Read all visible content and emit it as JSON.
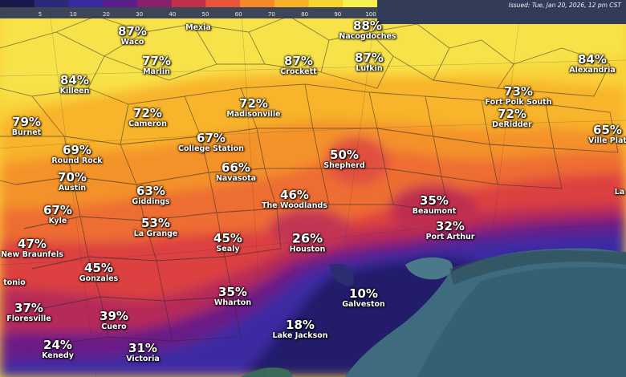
{
  "map": {
    "issued": "Issued: Tue, Jan 20, 2026, 12 pm CST",
    "legend": {
      "ticks": [
        "5",
        "10",
        "20",
        "30",
        "40",
        "50",
        "60",
        "70",
        "80",
        "90",
        "100"
      ],
      "colors": [
        "#1a1a4a",
        "#2a2a78",
        "#3a2aa0",
        "#5a1f8a",
        "#8a1f6a",
        "#c0304a",
        "#e8563a",
        "#f5862a",
        "#f8b028",
        "#f9d330",
        "#f7ef50"
      ]
    },
    "locations": [
      {
        "id": "waco",
        "pct": "87%",
        "city": "Waco"
      },
      {
        "id": "mexia",
        "pct": "",
        "city": "Mexia"
      },
      {
        "id": "nacogdoches",
        "pct": "88%",
        "city": "Nacogdoches"
      },
      {
        "id": "marlin",
        "pct": "77%",
        "city": "Marlin"
      },
      {
        "id": "crockett",
        "pct": "87%",
        "city": "Crockett"
      },
      {
        "id": "lufkin",
        "pct": "87%",
        "city": "Lufkin"
      },
      {
        "id": "alexandria",
        "pct": "84%",
        "city": "Alexandria"
      },
      {
        "id": "killeen",
        "pct": "84%",
        "city": "Killeen"
      },
      {
        "id": "cameron",
        "pct": "72%",
        "city": "Cameron"
      },
      {
        "id": "madisonville",
        "pct": "72%",
        "city": "Madisonville"
      },
      {
        "id": "fort-polk-south",
        "pct": "73%",
        "city": "Fort Polk South"
      },
      {
        "id": "deridder",
        "pct": "72%",
        "city": "DeRidder"
      },
      {
        "id": "burnet",
        "pct": "79%",
        "city": "Burnet"
      },
      {
        "id": "college-station",
        "pct": "67%",
        "city": "College Station"
      },
      {
        "id": "ville-platte",
        "pct": "65%",
        "city": "Ville Plat"
      },
      {
        "id": "round-rock",
        "pct": "69%",
        "city": "Round Rock"
      },
      {
        "id": "shepherd",
        "pct": "50%",
        "city": "Shepherd"
      },
      {
        "id": "navasota",
        "pct": "66%",
        "city": "Navasota"
      },
      {
        "id": "austin",
        "pct": "70%",
        "city": "Austin"
      },
      {
        "id": "giddings",
        "pct": "63%",
        "city": "Giddings"
      },
      {
        "id": "the-woodlands",
        "pct": "46%",
        "city": "The Woodlands"
      },
      {
        "id": "beaumont",
        "pct": "35%",
        "city": "Beaumont"
      },
      {
        "id": "kyle",
        "pct": "67%",
        "city": "Kyle"
      },
      {
        "id": "la-grange",
        "pct": "53%",
        "city": "La Grange"
      },
      {
        "id": "port-arthur",
        "pct": "32%",
        "city": "Port Arthur"
      },
      {
        "id": "new-braunfels",
        "pct": "47%",
        "city": "New Braunfels"
      },
      {
        "id": "sealy",
        "pct": "45%",
        "city": "Sealy"
      },
      {
        "id": "houston",
        "pct": "26%",
        "city": "Houston"
      },
      {
        "id": "gonzales",
        "pct": "45%",
        "city": "Gonzales"
      },
      {
        "id": "san-antonio",
        "pct": "",
        "city": "tonio"
      },
      {
        "id": "wharton",
        "pct": "35%",
        "city": "Wharton"
      },
      {
        "id": "galveston",
        "pct": "10%",
        "city": "Galveston"
      },
      {
        "id": "floresville",
        "pct": "37%",
        "city": "Floresville"
      },
      {
        "id": "cuero",
        "pct": "39%",
        "city": "Cuero"
      },
      {
        "id": "lake-jackson",
        "pct": "18%",
        "city": "Lake Jackson"
      },
      {
        "id": "kenedy",
        "pct": "24%",
        "city": "Kenedy"
      },
      {
        "id": "victoria",
        "pct": "31%",
        "city": "Victoria"
      },
      {
        "id": "lake-charles",
        "pct": "",
        "city": "La"
      }
    ]
  }
}
